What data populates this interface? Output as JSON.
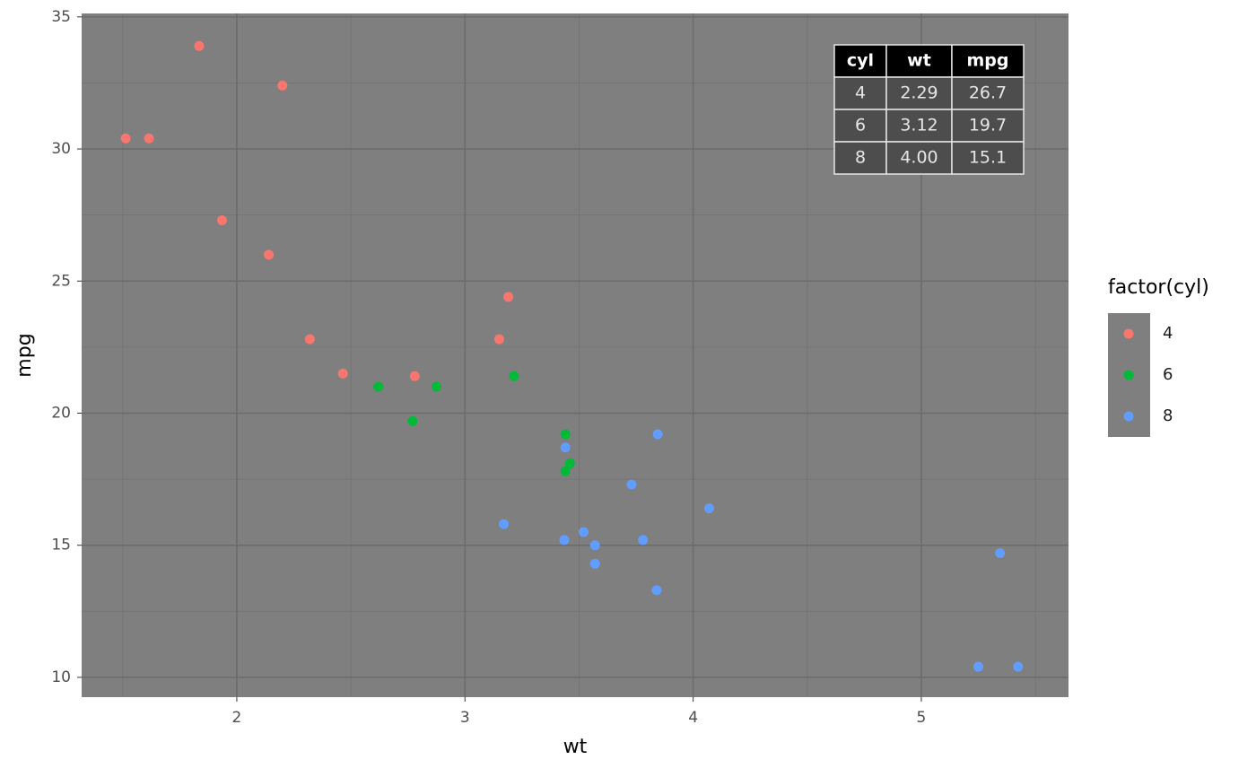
{
  "chart_data": {
    "type": "scatter",
    "x_label": "wt",
    "y_label": "mpg",
    "xlim": [
      1.32,
      5.645
    ],
    "ylim": [
      9.25,
      35.13
    ],
    "xticks": [
      2,
      3,
      4,
      5
    ],
    "yticks": [
      10,
      15,
      20,
      25,
      30,
      35
    ],
    "xminor": [
      1.5,
      2.5,
      3.5,
      4.5,
      5.5
    ],
    "yminor": [
      12.5,
      17.5,
      22.5,
      27.5,
      32.5
    ],
    "grid": true,
    "legend_title": "factor(cyl)",
    "legend_position": "right",
    "series": [
      {
        "name": "4",
        "color": "#F8766D",
        "x": [
          2.32,
          3.19,
          3.15,
          2.2,
          1.615,
          1.835,
          2.465,
          1.935,
          2.14,
          1.513,
          2.78
        ],
        "values": [
          22.8,
          24.4,
          22.8,
          32.4,
          30.4,
          33.9,
          21.5,
          27.3,
          26.0,
          30.4,
          21.4
        ]
      },
      {
        "name": "6",
        "color": "#00BA38",
        "x": [
          2.62,
          2.875,
          3.215,
          3.46,
          3.44,
          3.44,
          2.77
        ],
        "values": [
          21.0,
          21.0,
          21.4,
          18.1,
          19.2,
          17.8,
          19.7
        ]
      },
      {
        "name": "8",
        "color": "#619CFF",
        "x": [
          3.44,
          3.57,
          4.07,
          3.73,
          3.78,
          5.25,
          5.424,
          5.345,
          3.52,
          3.435,
          3.84,
          3.845,
          3.17,
          3.57
        ],
        "values": [
          18.7,
          14.3,
          16.4,
          17.3,
          15.2,
          10.4,
          10.4,
          14.7,
          15.5,
          15.2,
          13.3,
          19.2,
          15.8,
          15.0
        ]
      }
    ],
    "table": {
      "columns": [
        "cyl",
        "wt",
        "mpg"
      ],
      "rows": [
        [
          "4",
          "2.29",
          "26.7"
        ],
        [
          "6",
          "3.12",
          "19.7"
        ],
        [
          "8",
          "4.00",
          "15.1"
        ]
      ]
    }
  }
}
